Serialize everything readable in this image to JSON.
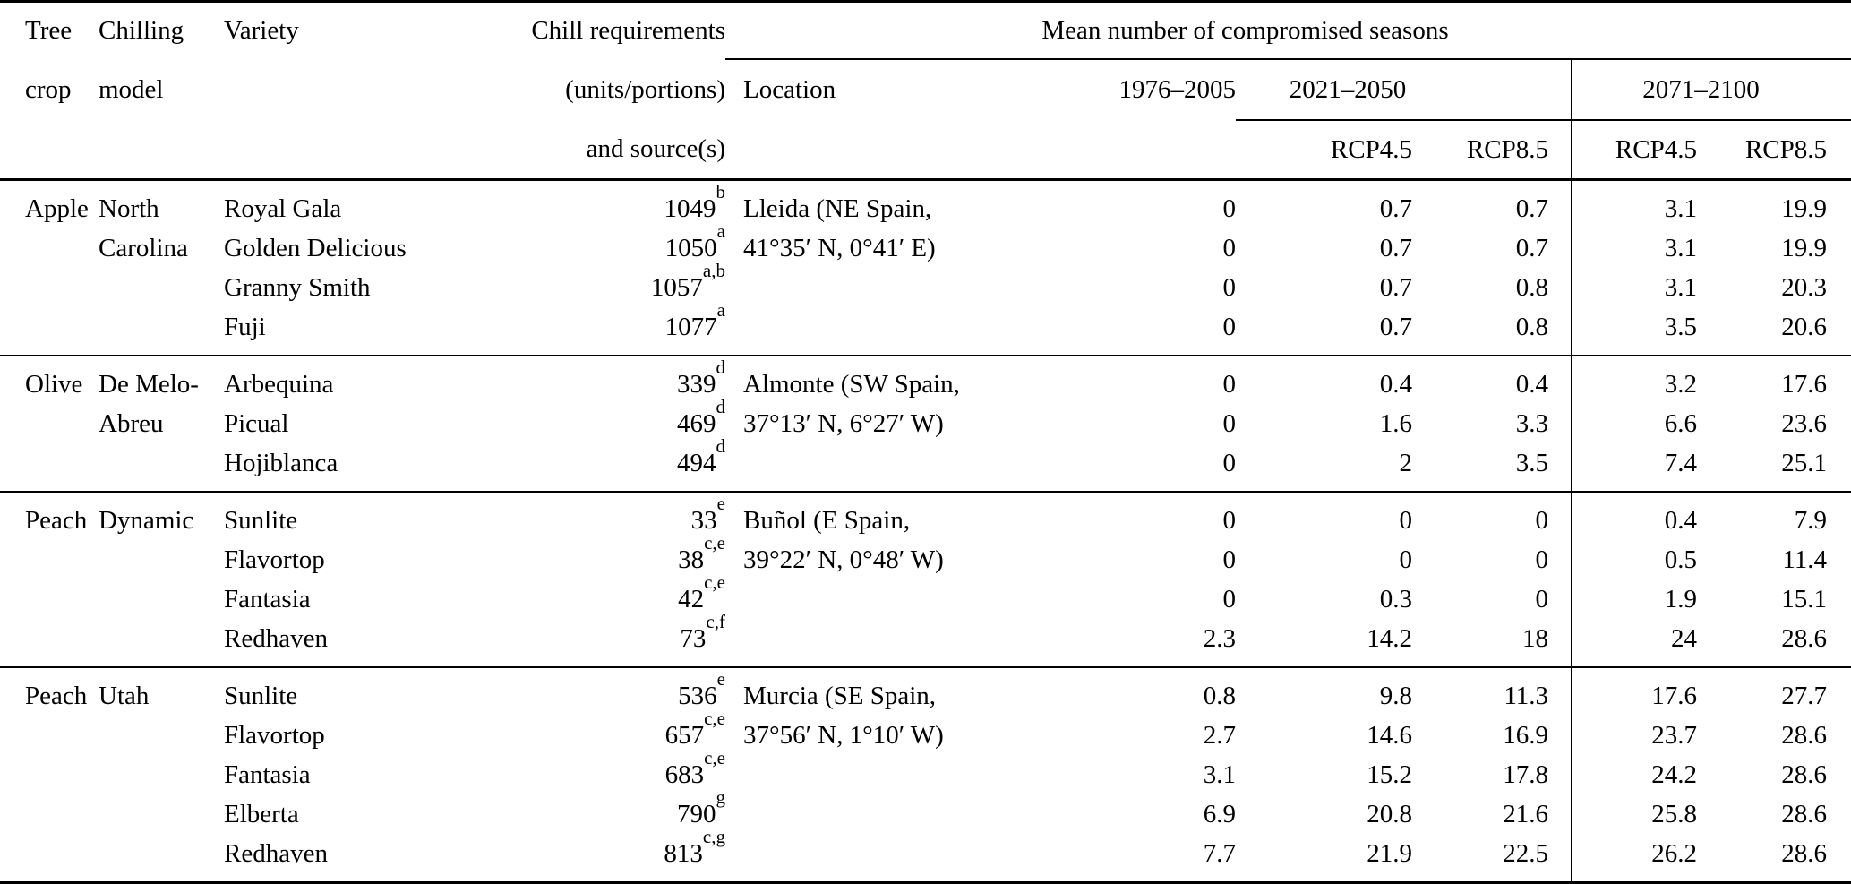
{
  "table": {
    "header": {
      "tree_line1": "Tree",
      "tree_line2": "crop",
      "model_line1": "Chilling",
      "model_line2": "model",
      "variety": "Variety",
      "chill_line1": "Chill requirements",
      "chill_line2": "(units/portions)",
      "chill_line3": "and source(s)",
      "mean_title": "Mean number of compromised seasons",
      "location": "Location",
      "period_past": "1976–2005",
      "period_mid": "2021–2050",
      "period_far": "2071–2100",
      "rcp45": "RCP4.5",
      "rcp85": "RCP8.5"
    },
    "sections": [
      {
        "crop": "Apple",
        "model_lines": [
          "North",
          "Carolina"
        ],
        "location_lines": [
          "Lleida (NE Spain,",
          "41°35′ N, 0°41′ E)"
        ],
        "rows": [
          {
            "variety": "Royal Gala",
            "chill": "1049",
            "chill_sup": "b",
            "values": [
              "0",
              "0.7",
              "0.7",
              "3.1",
              "19.9"
            ]
          },
          {
            "variety": "Golden Delicious",
            "chill": "1050",
            "chill_sup": "a",
            "values": [
              "0",
              "0.7",
              "0.7",
              "3.1",
              "19.9"
            ]
          },
          {
            "variety": "Granny Smith",
            "chill": "1057",
            "chill_sup": "a,b",
            "values": [
              "0",
              "0.7",
              "0.8",
              "3.1",
              "20.3"
            ]
          },
          {
            "variety": "Fuji",
            "chill": "1077",
            "chill_sup": "a",
            "values": [
              "0",
              "0.7",
              "0.8",
              "3.5",
              "20.6"
            ]
          }
        ]
      },
      {
        "crop": "Olive",
        "model_lines": [
          "De Melo-",
          "Abreu"
        ],
        "location_lines": [
          "Almonte (SW Spain,",
          "37°13′ N, 6°27′ W)"
        ],
        "rows": [
          {
            "variety": "Arbequina",
            "chill": "339",
            "chill_sup": "d",
            "values": [
              "0",
              "0.4",
              "0.4",
              "3.2",
              "17.6"
            ]
          },
          {
            "variety": "Picual",
            "chill": "469",
            "chill_sup": "d",
            "values": [
              "0",
              "1.6",
              "3.3",
              "6.6",
              "23.6"
            ]
          },
          {
            "variety": "Hojiblanca",
            "chill": "494",
            "chill_sup": "d",
            "values": [
              "0",
              "2",
              "3.5",
              "7.4",
              "25.1"
            ]
          }
        ]
      },
      {
        "crop": "Peach",
        "model_lines": [
          "Dynamic"
        ],
        "location_lines": [
          "Buñol (E Spain,",
          "39°22′ N, 0°48′ W)"
        ],
        "rows": [
          {
            "variety": "Sunlite",
            "chill": "33",
            "chill_sup": "e",
            "values": [
              "0",
              "0",
              "0",
              "0.4",
              "7.9"
            ]
          },
          {
            "variety": "Flavortop",
            "chill": "38",
            "chill_sup": "c,e",
            "values": [
              "0",
              "0",
              "0",
              "0.5",
              "11.4"
            ]
          },
          {
            "variety": "Fantasia",
            "chill": "42",
            "chill_sup": "c,e",
            "values": [
              "0",
              "0.3",
              "0",
              "1.9",
              "15.1"
            ]
          },
          {
            "variety": "Redhaven",
            "chill": "73",
            "chill_sup": "c,f",
            "values": [
              "2.3",
              "14.2",
              "18",
              "24",
              "28.6"
            ]
          }
        ]
      },
      {
        "crop": "Peach",
        "model_lines": [
          "Utah"
        ],
        "location_lines": [
          "Murcia (SE Spain,",
          "37°56′ N, 1°10′ W)"
        ],
        "rows": [
          {
            "variety": "Sunlite",
            "chill": "536",
            "chill_sup": "e",
            "values": [
              "0.8",
              "9.8",
              "11.3",
              "17.6",
              "27.7"
            ]
          },
          {
            "variety": "Flavortop",
            "chill": "657",
            "chill_sup": "c,e",
            "values": [
              "2.7",
              "14.6",
              "16.9",
              "23.7",
              "28.6"
            ]
          },
          {
            "variety": "Fantasia",
            "chill": "683",
            "chill_sup": "c,e",
            "values": [
              "3.1",
              "15.2",
              "17.8",
              "24.2",
              "28.6"
            ]
          },
          {
            "variety": "Elberta",
            "chill": "790",
            "chill_sup": "g",
            "values": [
              "6.9",
              "20.8",
              "21.6",
              "25.8",
              "28.6"
            ]
          },
          {
            "variety": "Redhaven",
            "chill": "813",
            "chill_sup": "c,g",
            "values": [
              "7.7",
              "21.9",
              "22.5",
              "26.2",
              "28.6"
            ]
          }
        ]
      }
    ]
  }
}
